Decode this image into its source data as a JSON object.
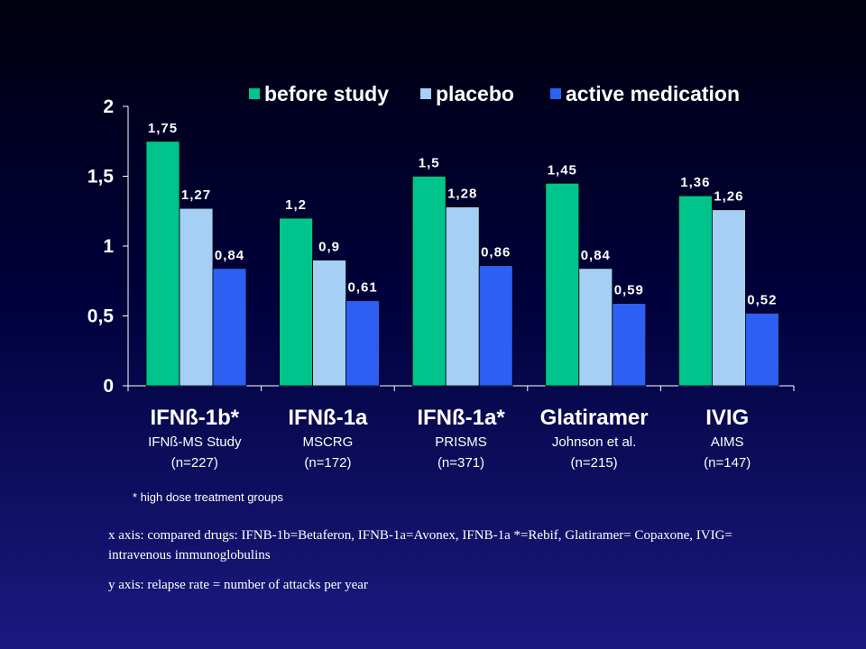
{
  "chart_data": {
    "type": "bar",
    "title": "",
    "xlabel": "",
    "ylabel": "",
    "ylim": [
      0,
      2
    ],
    "yticks": [
      "0",
      "0,5",
      "1",
      "1,5",
      "2"
    ],
    "ytick_values": [
      0,
      0.5,
      1,
      1.5,
      2
    ],
    "grid": false,
    "legend_position": "top",
    "categories": [
      {
        "name": "IFNß-1b*",
        "sub": "IFNß-MS Study",
        "n": "(n=227)"
      },
      {
        "name": "IFNß-1a",
        "sub": "MSCRG",
        "n": "(n=172)"
      },
      {
        "name": "IFNß-1a*",
        "sub": "PRISMS",
        "n": "(n=371)"
      },
      {
        "name": "Glatiramer",
        "sub": "Johnson et al.",
        "n": "(n=215)"
      },
      {
        "name": "IVIG",
        "sub": "AIMS",
        "n": "(n=147)"
      }
    ],
    "series": [
      {
        "name": "before study",
        "color": "#00c48c",
        "values": [
          1.75,
          1.2,
          1.5,
          1.45,
          1.36
        ],
        "labels": [
          "1,75",
          "1,2",
          "1,5",
          "1,45",
          "1,36"
        ]
      },
      {
        "name": "placebo",
        "color": "#a6cff5",
        "values": [
          1.27,
          0.9,
          1.28,
          0.84,
          1.26
        ],
        "labels": [
          "1,27",
          "0,9",
          "1,28",
          "0,84",
          "1,26"
        ]
      },
      {
        "name": "active medication",
        "color": "#2d5ff2",
        "values": [
          0.84,
          0.61,
          0.86,
          0.59,
          0.52
        ],
        "labels": [
          "0,84",
          "0,61",
          "0,86",
          "0,59",
          "0,52"
        ]
      }
    ]
  },
  "notes": {
    "footnote": "* high dose treatment groups",
    "x_axis_caption": "x axis: compared drugs: IFNB-1b=Betaferon, IFNB-1a=Avonex, IFNB-1a *=Rebif, Glatiramer= Copaxone, IVIG= intravenous immunoglobulins",
    "y_axis_caption": "y axis: relapse rate = number of attacks per year"
  }
}
